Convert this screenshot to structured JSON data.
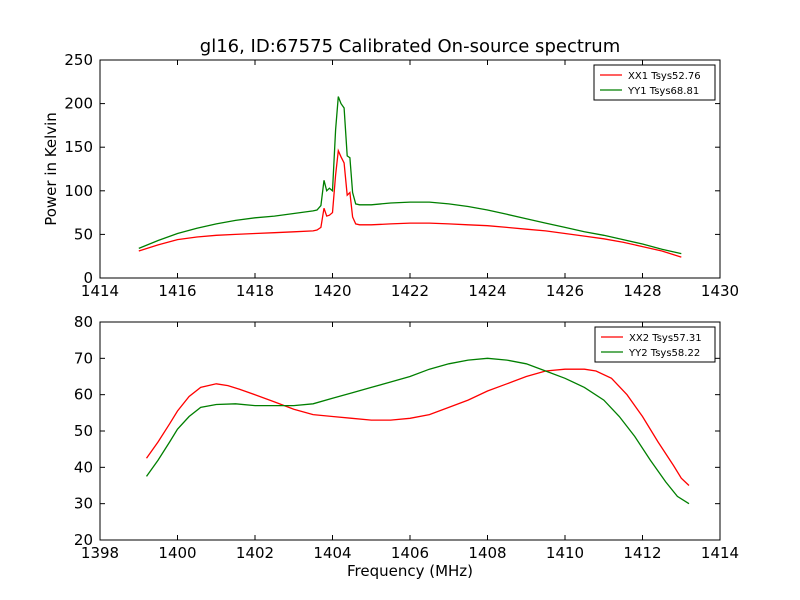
{
  "title": "gl16, ID:67575 Calibrated On-source spectrum",
  "colors": {
    "red": "#ff0000",
    "green": "#007f00"
  },
  "chart_data": [
    {
      "type": "line",
      "xlabel": "",
      "ylabel": "Power in Kelvin",
      "xlim": [
        1414,
        1430
      ],
      "ylim": [
        0,
        250
      ],
      "xticks": [
        "1414",
        "1416",
        "1418",
        "1420",
        "1422",
        "1424",
        "1426",
        "1428",
        "1430"
      ],
      "yticks": [
        "0",
        "50",
        "100",
        "150",
        "200",
        "250"
      ],
      "legend_position": "top-right",
      "series": [
        {
          "name": "XX1 Tsys52.76",
          "color": "#ff0000",
          "x": [
            1415.0,
            1415.5,
            1416.0,
            1416.5,
            1417.0,
            1417.5,
            1418.0,
            1418.5,
            1419.0,
            1419.5,
            1419.6,
            1419.7,
            1419.78,
            1419.85,
            1419.92,
            1420.0,
            1420.08,
            1420.15,
            1420.22,
            1420.3,
            1420.38,
            1420.45,
            1420.52,
            1420.6,
            1420.7,
            1421.0,
            1421.5,
            1422.0,
            1422.5,
            1423.0,
            1423.5,
            1424.0,
            1424.5,
            1425.0,
            1425.5,
            1426.0,
            1426.5,
            1427.0,
            1427.5,
            1428.0,
            1428.5,
            1429.0
          ],
          "y": [
            31,
            38,
            44,
            47,
            49,
            50,
            51,
            52,
            53,
            54,
            55,
            58,
            80,
            71,
            72,
            75,
            118,
            146,
            139,
            132,
            95,
            98,
            70,
            62,
            61,
            61,
            62,
            63,
            63,
            62,
            61,
            60,
            58,
            56,
            54,
            51,
            48,
            45,
            41,
            36,
            31,
            24
          ]
        },
        {
          "name": "YY1 Tsys68.81",
          "color": "#007f00",
          "x": [
            1415.0,
            1415.5,
            1416.0,
            1416.5,
            1417.0,
            1417.5,
            1418.0,
            1418.5,
            1419.0,
            1419.5,
            1419.6,
            1419.7,
            1419.78,
            1419.85,
            1419.92,
            1420.0,
            1420.08,
            1420.15,
            1420.22,
            1420.3,
            1420.38,
            1420.45,
            1420.52,
            1420.6,
            1420.7,
            1421.0,
            1421.5,
            1422.0,
            1422.5,
            1423.0,
            1423.5,
            1424.0,
            1424.5,
            1425.0,
            1425.5,
            1426.0,
            1426.5,
            1427.0,
            1427.5,
            1428.0,
            1428.5,
            1429.0
          ],
          "y": [
            34,
            43,
            51,
            57,
            62,
            66,
            69,
            71,
            74,
            77,
            78,
            83,
            112,
            100,
            103,
            100,
            170,
            208,
            200,
            195,
            140,
            138,
            98,
            85,
            84,
            84,
            86,
            87,
            87,
            85,
            82,
            78,
            73,
            68,
            63,
            58,
            53,
            49,
            44,
            39,
            33,
            28
          ]
        }
      ]
    },
    {
      "type": "line",
      "xlabel": "Frequency (MHz)",
      "ylabel": "",
      "xlim": [
        1398,
        1414
      ],
      "ylim": [
        20,
        80
      ],
      "xticks": [
        "1398",
        "1400",
        "1402",
        "1404",
        "1406",
        "1408",
        "1410",
        "1412",
        "1414"
      ],
      "yticks": [
        "20",
        "30",
        "40",
        "50",
        "60",
        "70",
        "80"
      ],
      "legend_position": "top-right",
      "series": [
        {
          "name": "XX2 Tsys57.31",
          "color": "#ff0000",
          "x": [
            1399.2,
            1399.5,
            1399.8,
            1400.0,
            1400.3,
            1400.6,
            1401.0,
            1401.3,
            1401.6,
            1402.0,
            1402.5,
            1403.0,
            1403.5,
            1404.0,
            1404.5,
            1405.0,
            1405.5,
            1406.0,
            1406.5,
            1407.0,
            1407.5,
            1408.0,
            1408.5,
            1409.0,
            1409.5,
            1410.0,
            1410.5,
            1410.8,
            1411.2,
            1411.6,
            1412.0,
            1412.4,
            1412.8,
            1413.0,
            1413.2
          ],
          "y": [
            42.5,
            47,
            52,
            55.5,
            59.5,
            62,
            63,
            62.5,
            61.5,
            60,
            58,
            56,
            54.5,
            54,
            53.5,
            53,
            53,
            53.5,
            54.5,
            56.5,
            58.5,
            61,
            63,
            65,
            66.5,
            67,
            67,
            66.5,
            64.5,
            60,
            54,
            47,
            40.5,
            37,
            35
          ]
        },
        {
          "name": "YY2 Tsys58.22",
          "color": "#007f00",
          "x": [
            1399.2,
            1399.5,
            1399.8,
            1400.0,
            1400.3,
            1400.6,
            1401.0,
            1401.5,
            1402.0,
            1402.5,
            1403.0,
            1403.5,
            1404.0,
            1404.5,
            1405.0,
            1405.5,
            1406.0,
            1406.5,
            1407.0,
            1407.5,
            1408.0,
            1408.5,
            1409.0,
            1409.5,
            1410.0,
            1410.5,
            1411.0,
            1411.4,
            1411.8,
            1412.2,
            1412.6,
            1412.9,
            1413.2
          ],
          "y": [
            37.5,
            42,
            47,
            50.5,
            54,
            56.5,
            57.3,
            57.5,
            57,
            57,
            57,
            57.5,
            59,
            60.5,
            62,
            63.5,
            65,
            67,
            68.5,
            69.5,
            70,
            69.5,
            68.5,
            66.5,
            64.5,
            62,
            58.5,
            54,
            48.5,
            42,
            36,
            32,
            30
          ]
        }
      ]
    }
  ]
}
